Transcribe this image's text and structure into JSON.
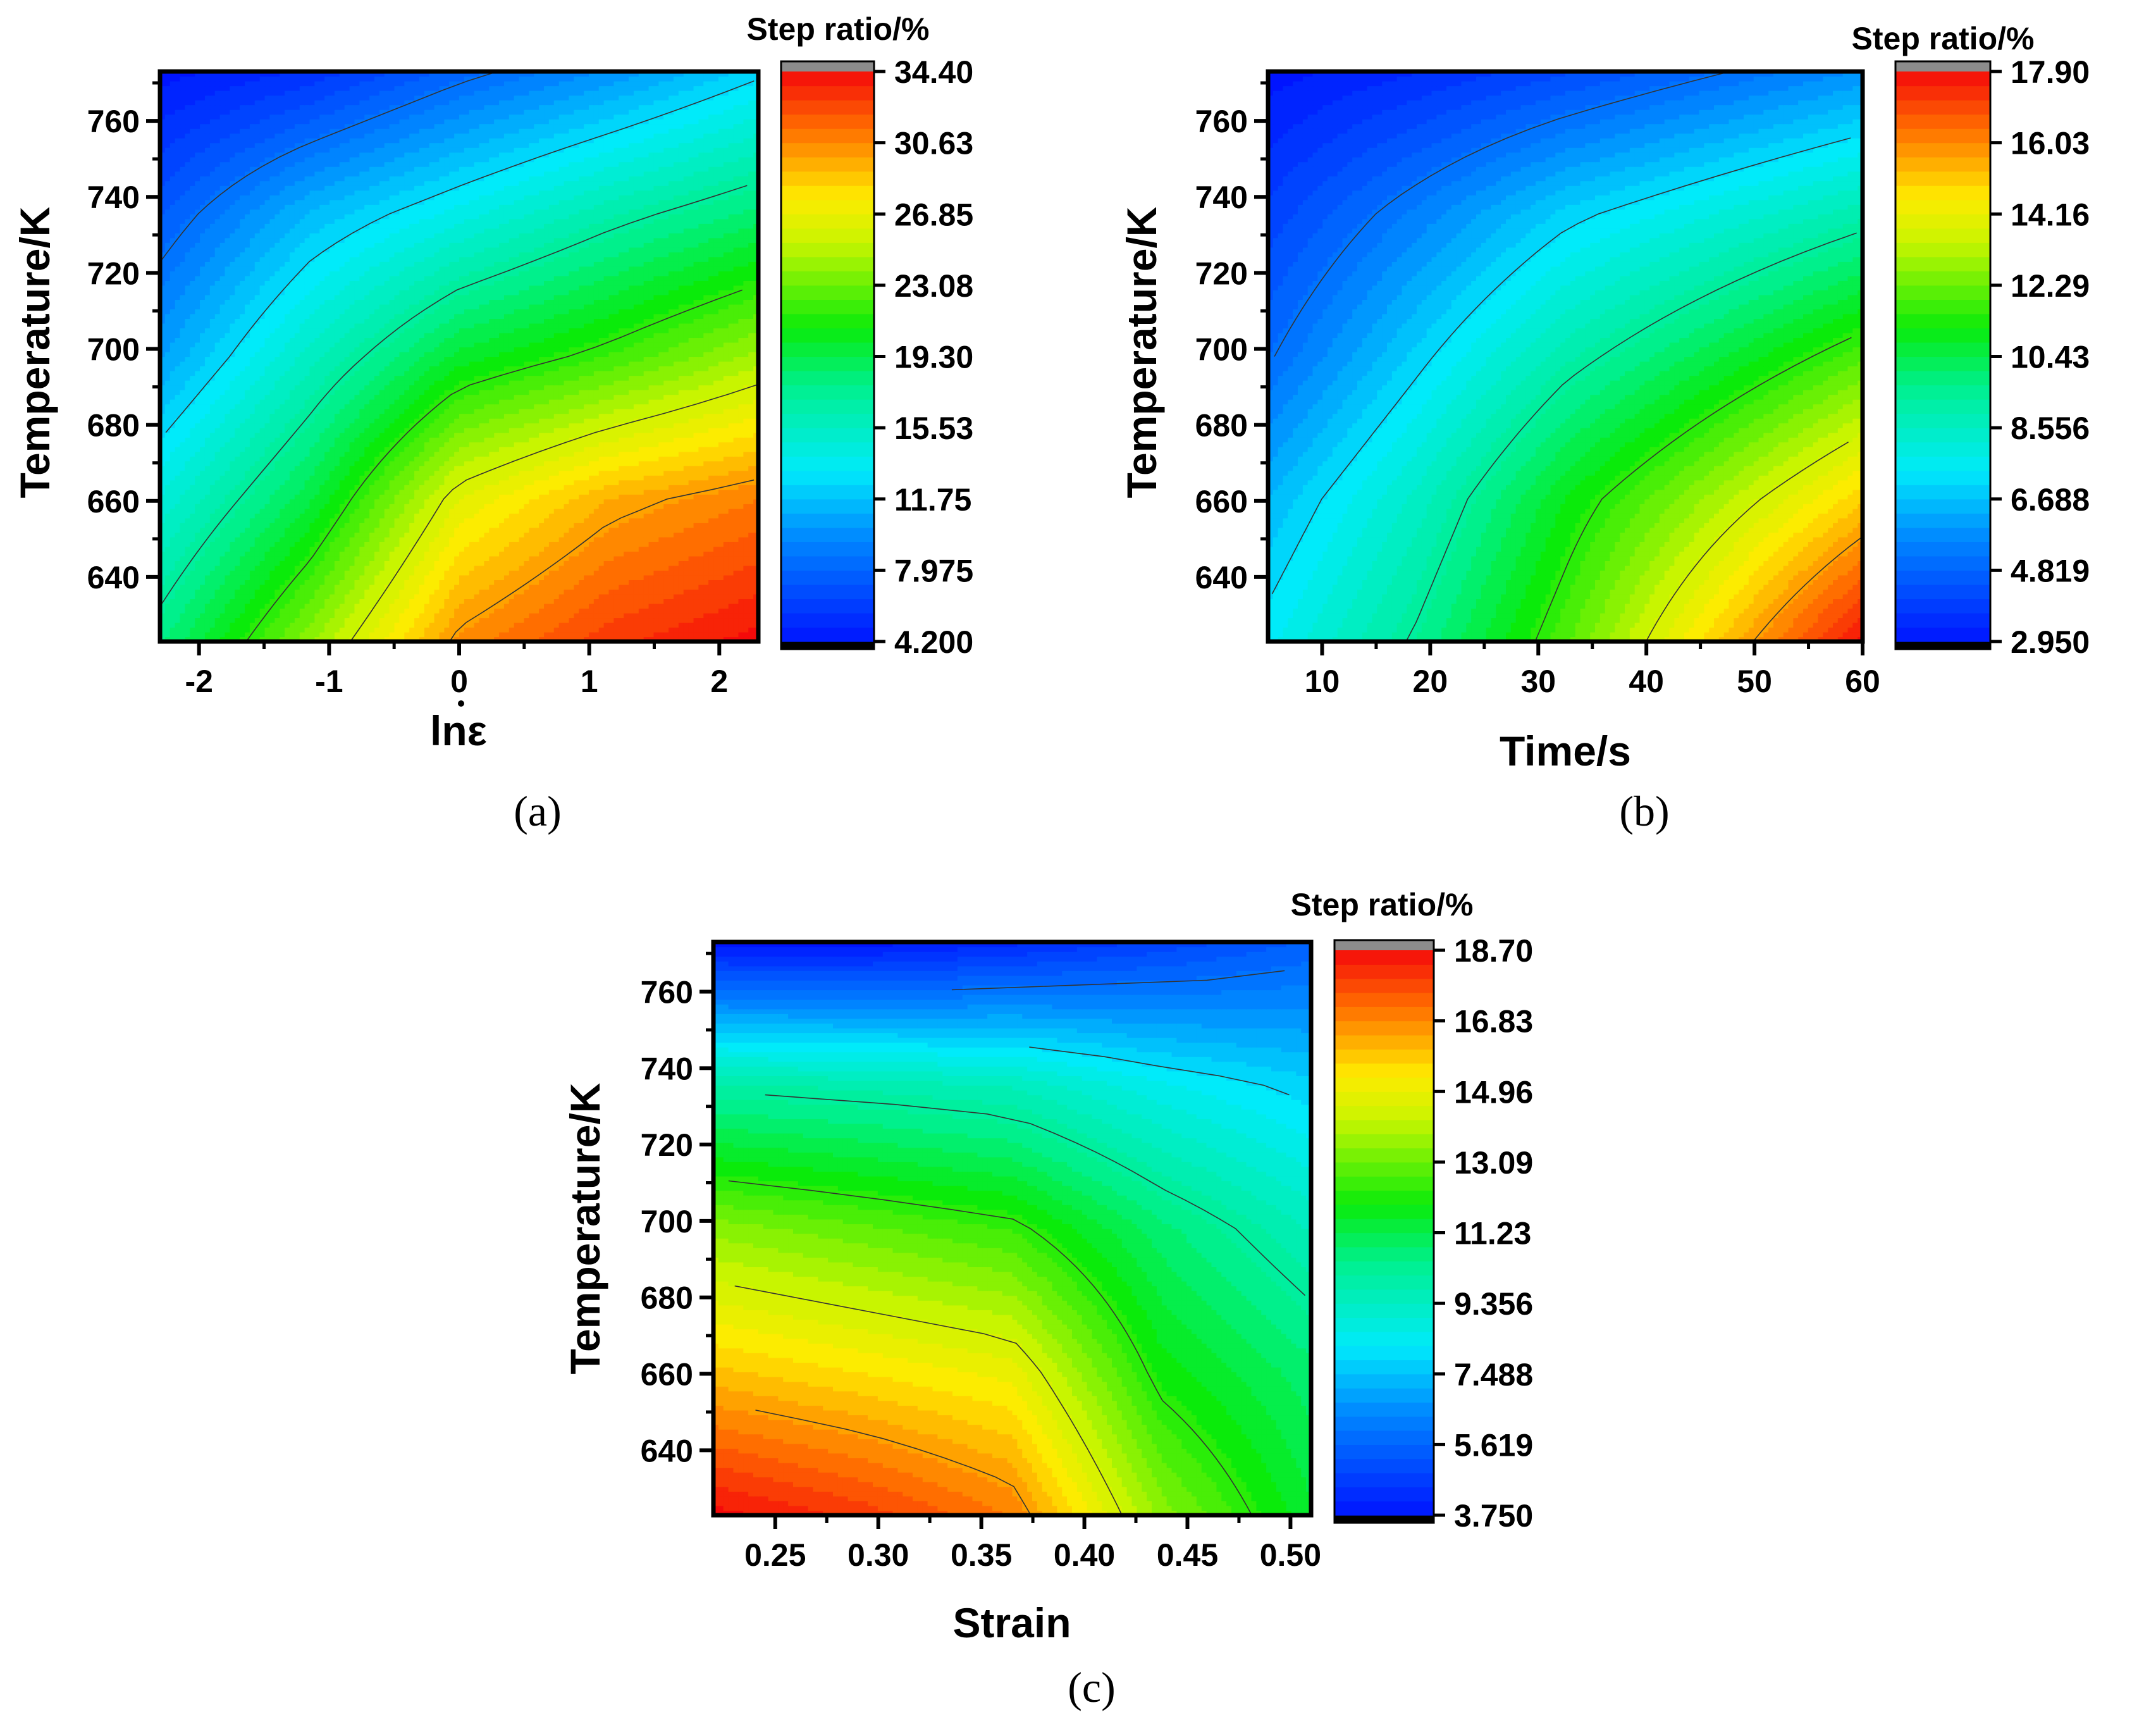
{
  "chart_data": [
    {
      "type": "contour",
      "panel_label": "(a)",
      "xlabel": "lnε",
      "ylabel": "Temperature/K",
      "x_ticks": [
        "-2",
        "-1",
        "0",
        "1",
        "2"
      ],
      "x_tick_values": [
        -2,
        -1,
        0,
        1,
        2
      ],
      "xlim": [
        -2.3,
        2.3
      ],
      "y_ticks": [
        "640",
        "660",
        "680",
        "700",
        "720",
        "740",
        "760"
      ],
      "y_tick_values": [
        640,
        660,
        680,
        700,
        720,
        740,
        760
      ],
      "ylim": [
        623,
        773
      ],
      "colorbar_title": "Step ratio/%",
      "colorbar_labels": [
        "34.40",
        "30.63",
        "26.85",
        "23.08",
        "19.30",
        "15.53",
        "11.75",
        "7.975",
        "4.200"
      ],
      "colorbar_range": [
        4.2,
        34.4
      ],
      "x": [
        -2.3,
        -1.15,
        0,
        1.15,
        2.3
      ],
      "y": [
        623,
        660,
        698,
        735,
        773
      ],
      "z": [
        [
          18.0,
          24.0,
          30.5,
          33.0,
          34.4
        ],
        [
          14.5,
          19.5,
          26.5,
          29.5,
          31.0
        ],
        [
          10.5,
          15.5,
          20.0,
          22.0,
          24.5
        ],
        [
          7.5,
          11.5,
          14.0,
          16.5,
          18.5
        ],
        [
          4.2,
          5.5,
          8.0,
          10.0,
          12.5
        ]
      ]
    },
    {
      "type": "contour",
      "panel_label": "(b)",
      "xlabel": "Time/s",
      "ylabel": "Temperature/K",
      "x_ticks": [
        "10",
        "20",
        "30",
        "40",
        "50",
        "60"
      ],
      "x_tick_values": [
        10,
        20,
        30,
        40,
        50,
        60
      ],
      "xlim": [
        5,
        60
      ],
      "y_ticks": [
        "640",
        "660",
        "680",
        "700",
        "720",
        "740",
        "760"
      ],
      "y_tick_values": [
        640,
        660,
        680,
        700,
        720,
        740,
        760
      ],
      "ylim": [
        623,
        773
      ],
      "colorbar_title": "Step ratio/%",
      "colorbar_labels": [
        "17.90",
        "16.03",
        "14.16",
        "12.29",
        "10.43",
        "8.556",
        "6.688",
        "4.819",
        "2.950"
      ],
      "colorbar_range": [
        2.95,
        17.9
      ],
      "x": [
        5,
        18.75,
        32.5,
        46.25,
        60
      ],
      "y": [
        623,
        660,
        698,
        735,
        773
      ],
      "z": [
        [
          7.5,
          9.5,
          12.0,
          15.0,
          17.9
        ],
        [
          6.5,
          8.5,
          11.0,
          13.0,
          15.0
        ],
        [
          5.0,
          7.0,
          9.0,
          10.5,
          12.0
        ],
        [
          4.0,
          5.5,
          7.0,
          8.0,
          9.0
        ],
        [
          2.95,
          3.5,
          4.2,
          5.0,
          5.8
        ]
      ]
    },
    {
      "type": "contour",
      "panel_label": "(c)",
      "xlabel": "Strain",
      "ylabel": "Temperature/K",
      "x_ticks": [
        "0.25",
        "0.30",
        "0.35",
        "0.40",
        "0.45",
        "0.50"
      ],
      "x_tick_values": [
        0.25,
        0.3,
        0.35,
        0.4,
        0.45,
        0.5
      ],
      "xlim": [
        0.22,
        0.51
      ],
      "y_ticks": [
        "640",
        "660",
        "680",
        "700",
        "720",
        "740",
        "760"
      ],
      "y_tick_values": [
        640,
        660,
        680,
        700,
        720,
        740,
        760
      ],
      "ylim": [
        623,
        773
      ],
      "colorbar_title": "Step ratio/%",
      "colorbar_labels": [
        "18.70",
        "16.83",
        "14.96",
        "13.09",
        "11.23",
        "9.356",
        "7.488",
        "5.619",
        "3.750"
      ],
      "colorbar_range": [
        3.75,
        18.7
      ],
      "x": [
        0.22,
        0.2925,
        0.365,
        0.4375,
        0.51
      ],
      "y": [
        623,
        660,
        698,
        735,
        773
      ],
      "z": [
        [
          18.7,
          18.0,
          17.0,
          13.5,
          11.5
        ],
        [
          16.0,
          15.5,
          15.0,
          12.0,
          10.8
        ],
        [
          13.5,
          13.0,
          12.5,
          10.8,
          9.5
        ],
        [
          10.0,
          9.8,
          9.5,
          8.5,
          7.8
        ],
        [
          3.75,
          3.75,
          4.2,
          4.8,
          5.5
        ]
      ]
    }
  ]
}
